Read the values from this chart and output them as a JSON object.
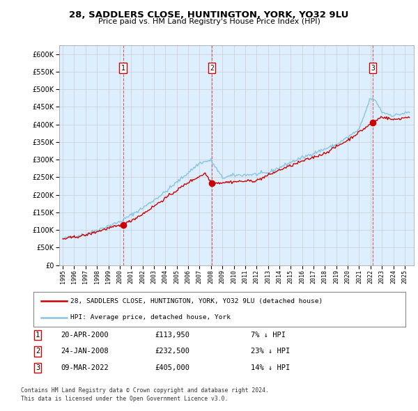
{
  "title": "28, SADDLERS CLOSE, HUNTINGTON, YORK, YO32 9LU",
  "subtitle": "Price paid vs. HM Land Registry's House Price Index (HPI)",
  "ytick_values": [
    0,
    50000,
    100000,
    150000,
    200000,
    250000,
    300000,
    350000,
    400000,
    450000,
    500000,
    550000,
    600000
  ],
  "ylim": [
    0,
    625000
  ],
  "xlim_start": 1994.7,
  "xlim_end": 2025.8,
  "purchases": [
    {
      "num": 1,
      "year": 2000.3,
      "price": 113950,
      "pct": "7%",
      "label": "20-APR-2000",
      "amount": "£113,950"
    },
    {
      "num": 2,
      "year": 2008.07,
      "price": 232500,
      "pct": "23%",
      "label": "24-JAN-2008",
      "amount": "£232,500"
    },
    {
      "num": 3,
      "year": 2022.19,
      "price": 405000,
      "pct": "14%",
      "label": "09-MAR-2022",
      "amount": "£405,000"
    }
  ],
  "legend_line1": "28, SADDLERS CLOSE, HUNTINGTON, YORK, YO32 9LU (detached house)",
  "legend_line2": "HPI: Average price, detached house, York",
  "footnote1": "Contains HM Land Registry data © Crown copyright and database right 2024.",
  "footnote2": "This data is licensed under the Open Government Licence v3.0.",
  "hpi_color": "#89c4e1",
  "price_color": "#cc0000",
  "background_color": "#ffffff",
  "grid_color": "#cccccc",
  "plot_bg_color": "#ddeeff"
}
